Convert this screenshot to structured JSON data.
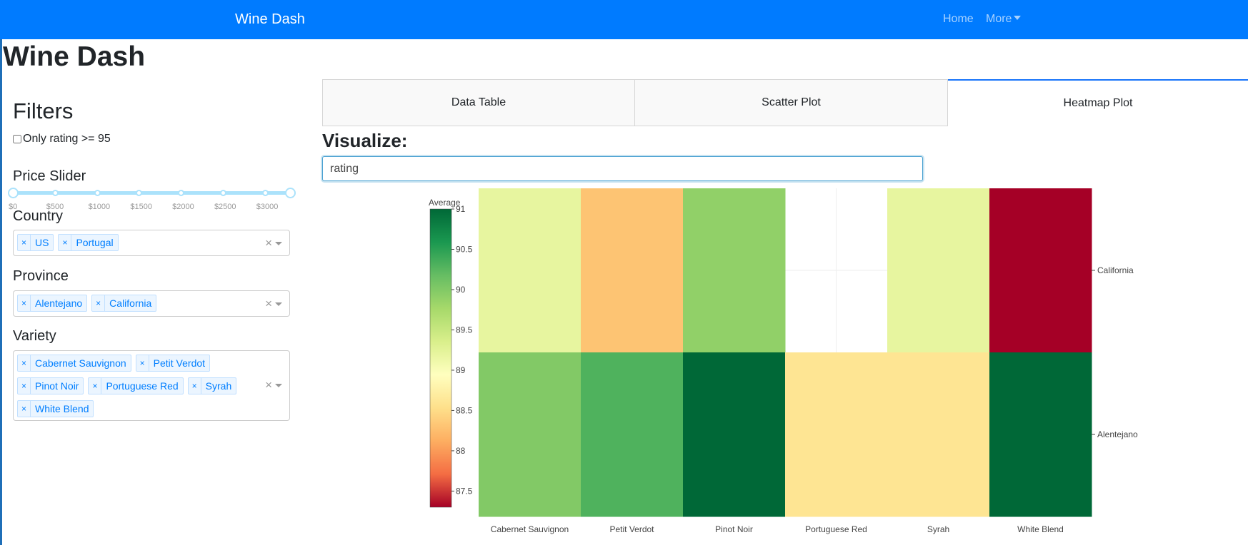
{
  "navbar": {
    "brand": "Wine Dash",
    "home": "Home",
    "more": "More",
    "bg_color": "#007bff"
  },
  "page": {
    "title": "Wine Dash"
  },
  "filters": {
    "title": "Filters",
    "rating_checkbox_label": "Only rating >= 95",
    "rating_checkbox_checked": false,
    "price_slider": {
      "label": "Price Slider",
      "marks": [
        "$0",
        "$500",
        "$1000",
        "$1500",
        "$2000",
        "$2500",
        "$3000"
      ],
      "range": [
        0,
        3300
      ]
    },
    "country": {
      "label": "Country",
      "selected": [
        "US",
        "Portugal"
      ]
    },
    "province": {
      "label": "Province",
      "selected": [
        "Alentejano",
        "California"
      ]
    },
    "variety": {
      "label": "Variety",
      "selected": [
        "Cabernet Sauvignon",
        "Petit Verdot",
        "Pinot Noir",
        "Portuguese Red",
        "Syrah",
        "White Blend"
      ]
    },
    "remove_glyph": "×",
    "clear_glyph": "×"
  },
  "tabs": [
    {
      "label": "Data Table",
      "active": false
    },
    {
      "label": "Scatter Plot",
      "active": false
    },
    {
      "label": "Heatmap Plot",
      "active": true
    }
  ],
  "visualize": {
    "label": "Visualize:",
    "value": "rating"
  },
  "chart_data": {
    "type": "heatmap",
    "x": [
      "Cabernet Sauvignon",
      "Petit Verdot",
      "Pinot Noir",
      "Portuguese Red",
      "Syrah",
      "White Blend"
    ],
    "y": [
      "California",
      "Alentejano"
    ],
    "z": [
      [
        89.2,
        88.3,
        89.9,
        null,
        89.2,
        87.3
      ],
      [
        90.0,
        90.3,
        91.0,
        88.6,
        88.6,
        91.0
      ]
    ],
    "colorbar": {
      "title": "Average",
      "range": [
        87.3,
        91.0
      ],
      "ticks": [
        87.5,
        88,
        88.5,
        89,
        89.5,
        90,
        90.5,
        91
      ],
      "tick_labels": [
        "87.5",
        "88",
        "88.5",
        "89",
        "89.5",
        "90",
        "90.5",
        "91"
      ],
      "placement": "left"
    },
    "colorscale": [
      "#a50026",
      "#f46d43",
      "#fdae61",
      "#fee08b",
      "#ffffbf",
      "#d9ef8b",
      "#a6d96a",
      "#66bd63",
      "#1a9850",
      "#006837"
    ],
    "yaxis_side": "right"
  }
}
